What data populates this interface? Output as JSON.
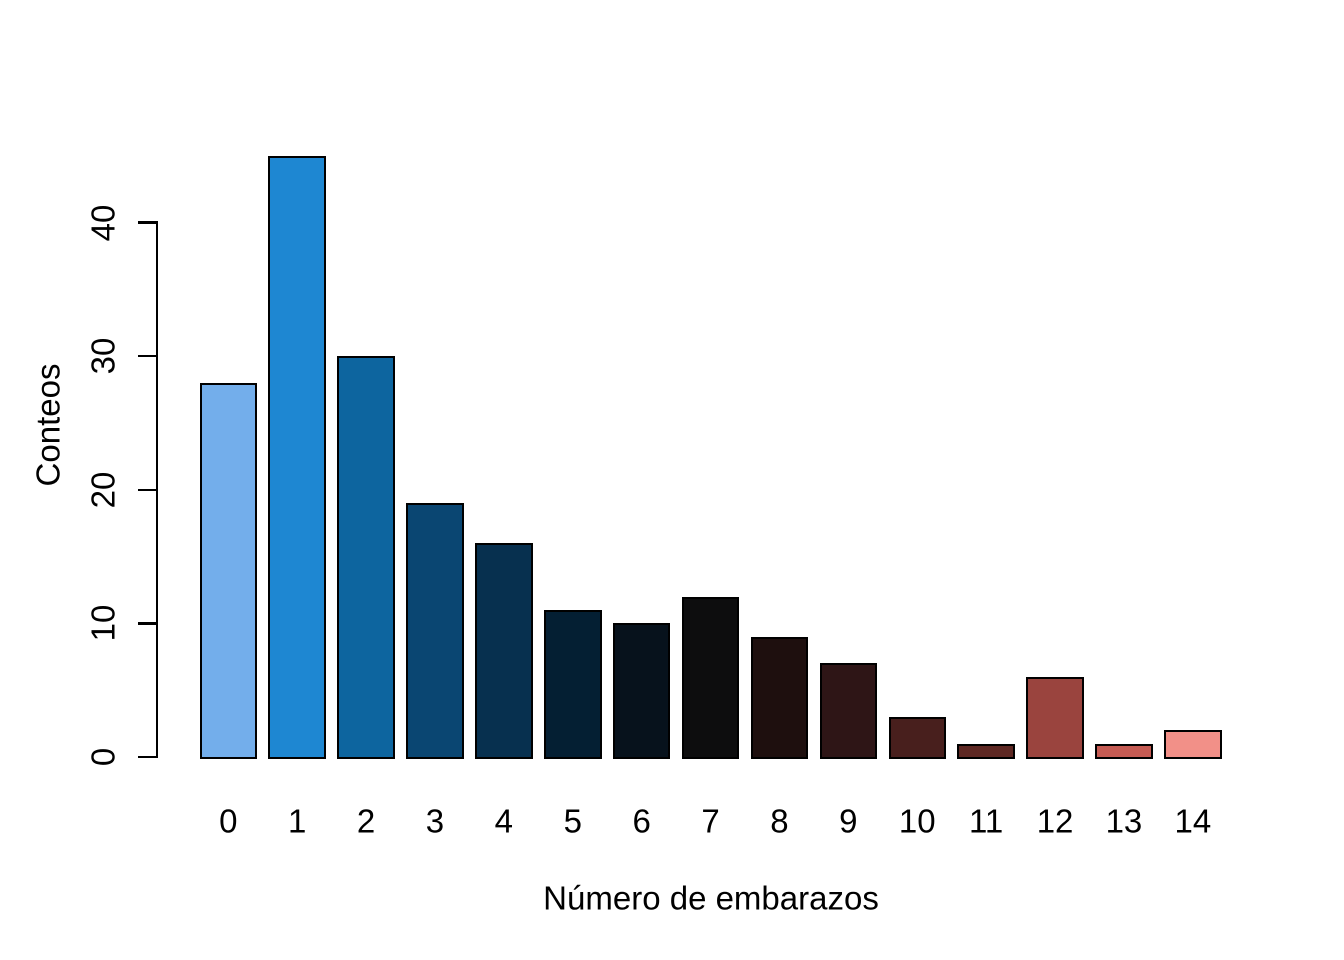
{
  "chart_data": {
    "type": "bar",
    "title": "",
    "xlabel": "Número de embarazos",
    "ylabel": "Conteos",
    "categories": [
      "0",
      "1",
      "2",
      "3",
      "4",
      "5",
      "6",
      "7",
      "8",
      "9",
      "10",
      "11",
      "12",
      "13",
      "14"
    ],
    "values": [
      28,
      45,
      30,
      19,
      16,
      11,
      10,
      12,
      9,
      7,
      3,
      1,
      6,
      1,
      2
    ],
    "bar_colors": [
      "#73AEEB",
      "#1E87D2",
      "#0D659F",
      "#0A4672",
      "#07304F",
      "#041F33",
      "#07121C",
      "#0D0D0E",
      "#1E0F0E",
      "#2E1516",
      "#481F1D",
      "#5E2823",
      "#9A443E",
      "#C55B53",
      "#F29088"
    ],
    "bar_border_color": "#000000",
    "axis_color": "#000000",
    "background_color": "#ffffff",
    "yticks": [
      0,
      10,
      20,
      30,
      40
    ],
    "ylim": [
      0,
      45
    ],
    "grid": false,
    "legend_position": "none"
  }
}
